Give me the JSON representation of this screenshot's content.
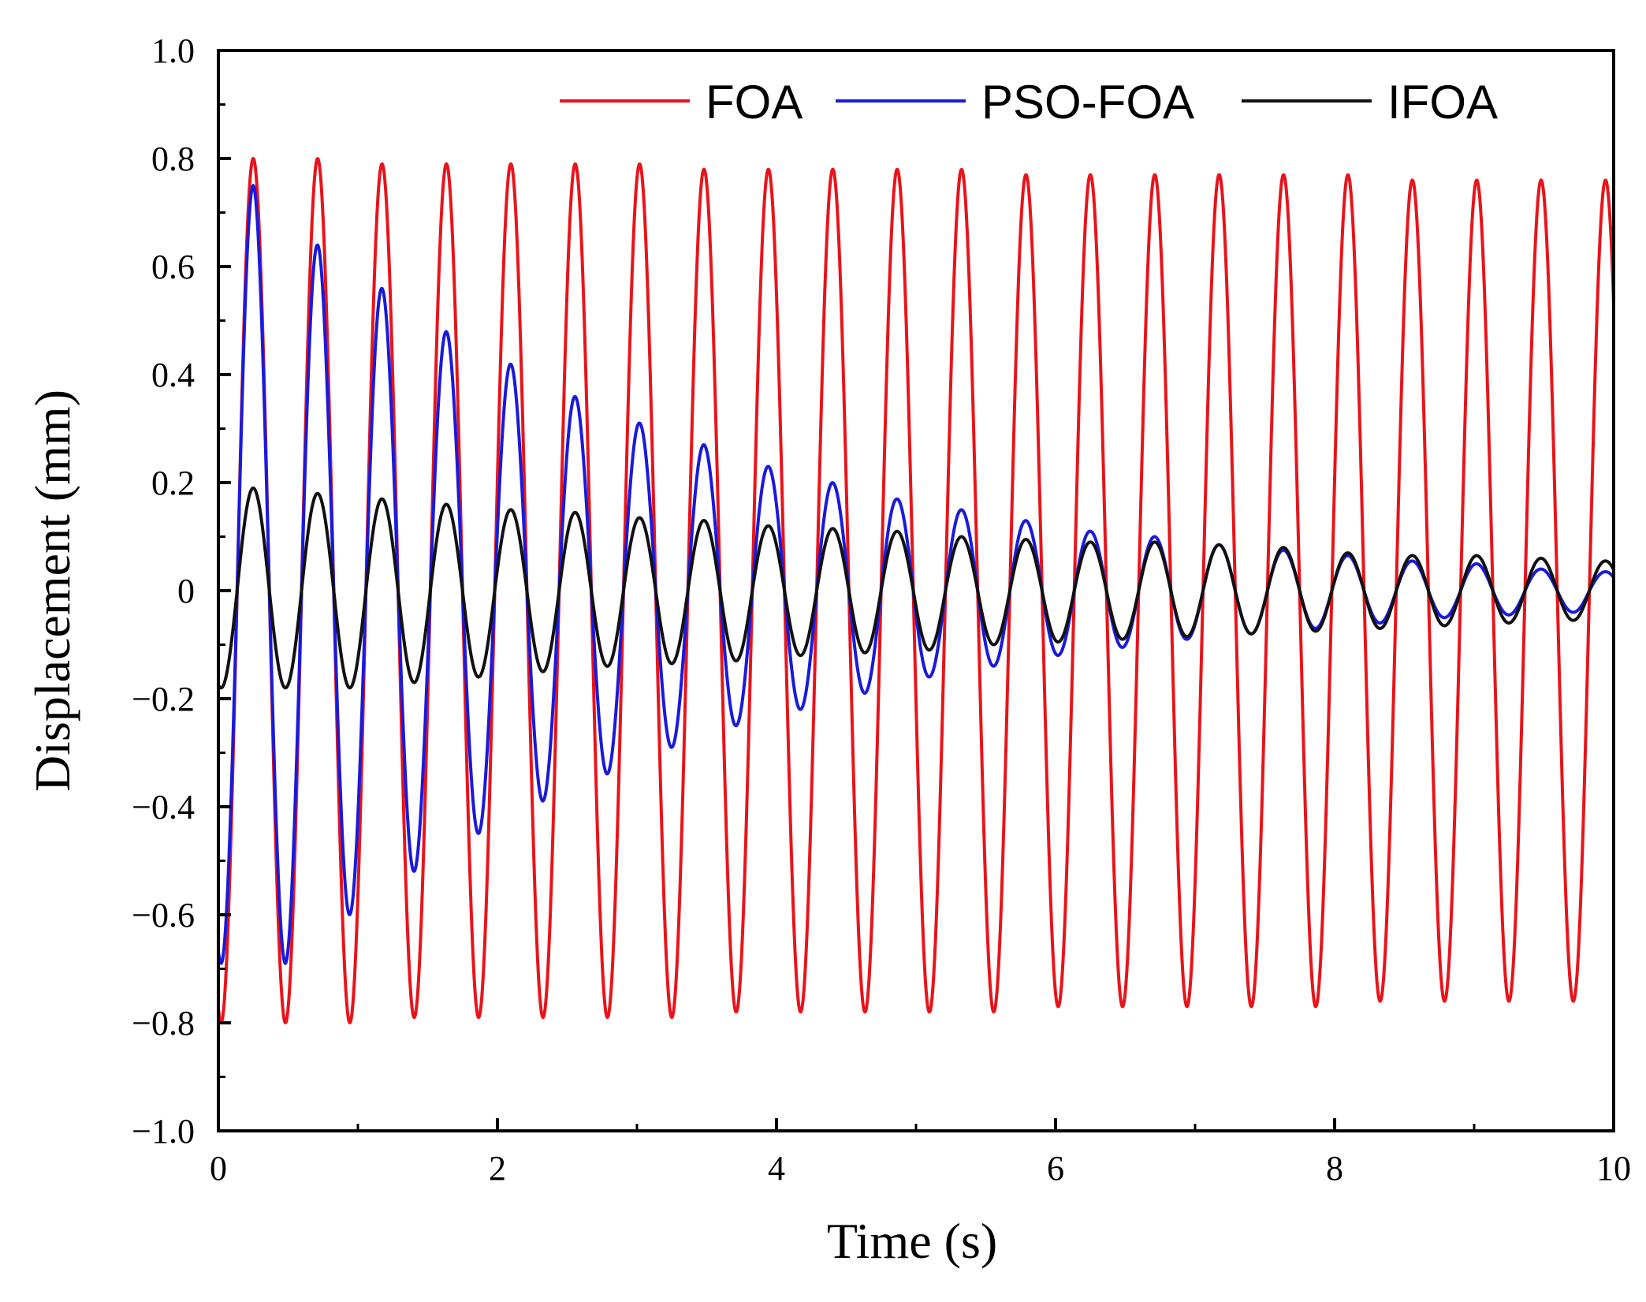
{
  "chart_data": {
    "type": "line",
    "title": "",
    "xlabel": "Time (s)",
    "ylabel": "Displacement (mm)",
    "xlim": [
      0,
      10
    ],
    "ylim": [
      -1.0,
      1.0
    ],
    "x_ticks": [
      0,
      2,
      4,
      6,
      8,
      10
    ],
    "x_tick_labels": [
      "0",
      "2",
      "4",
      "6",
      "8",
      "10"
    ],
    "y_ticks": [
      1.0,
      0.8,
      0.6,
      0.4,
      0.2,
      0,
      -0.2,
      -0.4,
      -0.6,
      -0.8,
      -1.0
    ],
    "y_tick_labels": [
      "1.0",
      "0.8",
      "0.6",
      "0.4",
      "0.2",
      "0",
      "−0.2",
      "−0.4",
      "−0.6",
      "−0.8",
      "−1.0"
    ],
    "grid": false,
    "legend_position": "top",
    "period_s": 0.4615,
    "series": [
      {
        "name": "FOA",
        "color": "#e8141b",
        "peak_times": [
          0.25,
          0.71,
          1.17,
          1.63,
          2.09,
          2.55,
          3.02,
          3.48,
          3.94,
          4.4,
          4.86,
          5.32,
          5.78,
          6.25,
          6.71,
          7.17,
          7.63,
          8.09,
          8.55,
          9.01,
          9.48,
          9.94
        ],
        "peak_values": [
          0.8,
          0.8,
          0.79,
          0.79,
          0.79,
          0.79,
          0.79,
          0.78,
          0.78,
          0.78,
          0.78,
          0.78,
          0.77,
          0.77,
          0.77,
          0.77,
          0.77,
          0.77,
          0.76,
          0.76,
          0.76,
          0.76
        ],
        "trough_times": [
          0.48,
          0.94,
          1.4,
          1.86,
          2.32,
          2.78,
          3.25,
          3.71,
          4.17,
          4.63,
          5.09,
          5.55,
          6.01,
          6.48,
          6.94,
          7.4,
          7.86,
          8.32,
          8.78,
          9.24,
          9.71
        ],
        "trough_values": [
          -0.8,
          -0.8,
          -0.79,
          -0.79,
          -0.79,
          -0.79,
          -0.79,
          -0.78,
          -0.78,
          -0.78,
          -0.78,
          -0.78,
          -0.77,
          -0.77,
          -0.77,
          -0.77,
          -0.77,
          -0.76,
          -0.76,
          -0.76,
          -0.76
        ]
      },
      {
        "name": "PSO-FOA",
        "color": "#1a1adb",
        "peak_times": [
          0.25,
          0.71,
          1.17,
          1.63,
          2.09,
          2.55,
          3.02,
          3.48,
          3.94,
          4.4,
          4.86,
          5.32,
          5.78,
          6.25,
          6.71,
          7.17,
          7.63,
          8.09,
          8.55,
          9.01,
          9.48,
          9.94
        ],
        "peak_values": [
          0.75,
          0.64,
          0.56,
          0.48,
          0.42,
          0.36,
          0.31,
          0.27,
          0.23,
          0.2,
          0.17,
          0.15,
          0.13,
          0.11,
          0.1,
          0.085,
          0.075,
          0.065,
          0.055,
          0.05,
          0.04,
          0.035
        ],
        "trough_times": [
          0.48,
          0.94,
          1.4,
          1.86,
          2.32,
          2.78,
          3.25,
          3.71,
          4.17,
          4.63,
          5.09,
          5.55,
          6.01,
          6.48,
          6.94,
          7.4,
          7.86,
          8.32,
          8.78,
          9.24,
          9.71
        ],
        "trough_values": [
          -0.69,
          -0.6,
          -0.52,
          -0.45,
          -0.39,
          -0.34,
          -0.29,
          -0.25,
          -0.22,
          -0.19,
          -0.16,
          -0.14,
          -0.12,
          -0.105,
          -0.09,
          -0.08,
          -0.07,
          -0.06,
          -0.05,
          -0.045,
          -0.04
        ]
      },
      {
        "name": "IFOA",
        "color": "#111111",
        "peak_times": [
          0.25,
          0.71,
          1.17,
          1.63,
          2.09,
          2.55,
          3.02,
          3.48,
          3.94,
          4.4,
          4.86,
          5.32,
          5.78,
          6.25,
          6.71,
          7.17,
          7.63,
          8.09,
          8.55,
          9.01,
          9.48,
          9.94
        ],
        "peak_values": [
          0.19,
          0.18,
          0.17,
          0.16,
          0.15,
          0.145,
          0.135,
          0.13,
          0.12,
          0.115,
          0.11,
          0.1,
          0.095,
          0.09,
          0.09,
          0.085,
          0.08,
          0.07,
          0.065,
          0.065,
          0.06,
          0.055
        ],
        "trough_times": [
          0.48,
          0.94,
          1.4,
          1.86,
          2.32,
          2.78,
          3.25,
          3.71,
          4.17,
          4.63,
          5.09,
          5.55,
          6.01,
          6.48,
          6.94,
          7.4,
          7.86,
          8.32,
          8.78,
          9.24,
          9.71
        ],
        "trough_values": [
          -0.18,
          -0.18,
          -0.17,
          -0.16,
          -0.15,
          -0.14,
          -0.135,
          -0.13,
          -0.12,
          -0.115,
          -0.11,
          -0.1,
          -0.095,
          -0.09,
          -0.085,
          -0.08,
          -0.075,
          -0.07,
          -0.065,
          -0.06,
          -0.055
        ]
      }
    ]
  }
}
